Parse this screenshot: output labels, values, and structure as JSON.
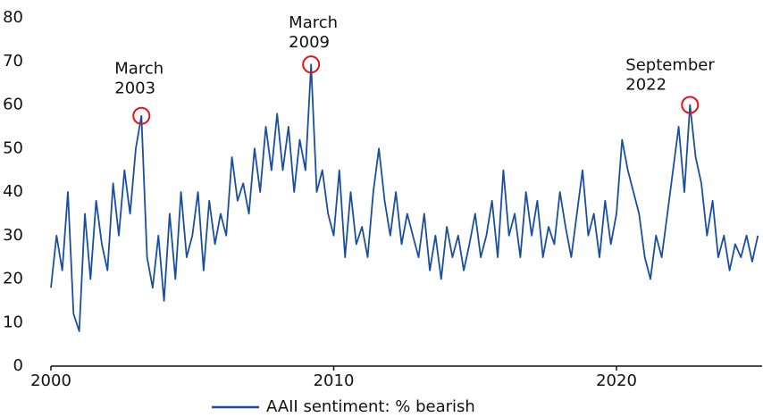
{
  "chart_data": {
    "type": "line",
    "x": [
      2000.0,
      2000.2,
      2000.4,
      2000.6,
      2000.8,
      2001.0,
      2001.2,
      2001.4,
      2001.6,
      2001.8,
      2002.0,
      2002.2,
      2002.4,
      2002.6,
      2002.8,
      2003.0,
      2003.2,
      2003.4,
      2003.6,
      2003.8,
      2004.0,
      2004.2,
      2004.4,
      2004.6,
      2004.8,
      2005.0,
      2005.2,
      2005.4,
      2005.6,
      2005.8,
      2006.0,
      2006.2,
      2006.4,
      2006.6,
      2006.8,
      2007.0,
      2007.2,
      2007.4,
      2007.6,
      2007.8,
      2008.0,
      2008.2,
      2008.4,
      2008.6,
      2008.8,
      2009.0,
      2009.2,
      2009.4,
      2009.6,
      2009.8,
      2010.0,
      2010.2,
      2010.4,
      2010.6,
      2010.8,
      2011.0,
      2011.2,
      2011.4,
      2011.6,
      2011.8,
      2012.0,
      2012.2,
      2012.4,
      2012.6,
      2012.8,
      2013.0,
      2013.2,
      2013.4,
      2013.6,
      2013.8,
      2014.0,
      2014.2,
      2014.4,
      2014.6,
      2014.8,
      2015.0,
      2015.2,
      2015.4,
      2015.6,
      2015.8,
      2016.0,
      2016.2,
      2016.4,
      2016.6,
      2016.8,
      2017.0,
      2017.2,
      2017.4,
      2017.6,
      2017.8,
      2018.0,
      2018.2,
      2018.4,
      2018.6,
      2018.8,
      2019.0,
      2019.2,
      2019.4,
      2019.6,
      2019.8,
      2020.0,
      2020.2,
      2020.4,
      2020.6,
      2020.8,
      2021.0,
      2021.2,
      2021.4,
      2021.6,
      2021.8,
      2022.0,
      2022.2,
      2022.4,
      2022.6,
      2022.8,
      2023.0,
      2023.2,
      2023.4,
      2023.6,
      2023.8,
      2024.0,
      2024.2,
      2024.4,
      2024.6,
      2024.8,
      2025.0
    ],
    "series": [
      {
        "name": "AAII sentiment: % bearish",
        "color": "#1a4fa0",
        "values": [
          18,
          30,
          22,
          40,
          12,
          8,
          35,
          20,
          38,
          28,
          22,
          42,
          30,
          45,
          35,
          50,
          57.5,
          25,
          18,
          30,
          15,
          35,
          20,
          40,
          25,
          30,
          40,
          22,
          38,
          28,
          35,
          30,
          48,
          38,
          42,
          35,
          50,
          40,
          55,
          45,
          58,
          45,
          55,
          40,
          52,
          45,
          69.3,
          40,
          45,
          35,
          30,
          45,
          25,
          40,
          28,
          32,
          25,
          40,
          50,
          38,
          30,
          40,
          28,
          35,
          30,
          25,
          35,
          22,
          30,
          20,
          32,
          25,
          30,
          22,
          28,
          35,
          25,
          30,
          38,
          25,
          45,
          30,
          35,
          25,
          40,
          30,
          38,
          25,
          32,
          28,
          40,
          32,
          25,
          35,
          45,
          30,
          35,
          25,
          38,
          28,
          35,
          52,
          45,
          40,
          35,
          25,
          20,
          30,
          25,
          35,
          45,
          55,
          40,
          60,
          48,
          42,
          30,
          38,
          25,
          30,
          22,
          28,
          25,
          30,
          24,
          30
        ]
      }
    ],
    "xlim": [
      2000,
      2025.15
    ],
    "ylim": [
      0,
      80
    ],
    "xticks": [
      2000,
      2010,
      2020
    ],
    "yticks": [
      0,
      10,
      20,
      30,
      40,
      50,
      60,
      70,
      80
    ],
    "annotations": [
      {
        "lines": [
          "March",
          "2003"
        ]
      },
      {
        "lines": [
          "March",
          "2009"
        ]
      },
      {
        "lines": [
          "September",
          "2022"
        ]
      }
    ]
  }
}
